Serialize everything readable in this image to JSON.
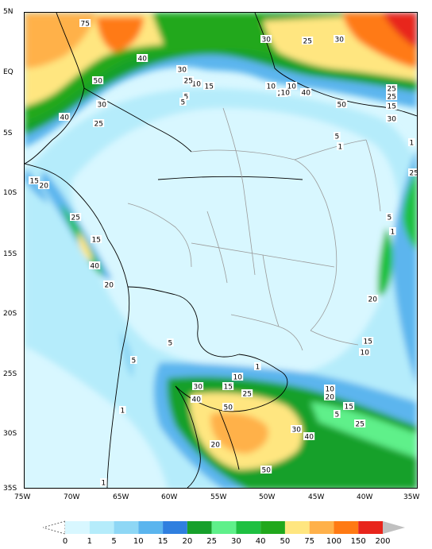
{
  "map": {
    "lat_labels": [
      "5N",
      "EQ",
      "5S",
      "10S",
      "15S",
      "20S",
      "25S",
      "30S",
      "35S"
    ],
    "lon_labels": [
      "75W",
      "70W",
      "65W",
      "60W",
      "55W",
      "50W",
      "45W",
      "40W",
      "35W"
    ],
    "contour_labels": [
      {
        "t": "75"
      },
      {
        "t": "40"
      },
      {
        "t": "50"
      },
      {
        "t": "30"
      },
      {
        "t": "40"
      },
      {
        "t": "25"
      },
      {
        "t": "30"
      },
      {
        "t": "25"
      },
      {
        "t": "30"
      },
      {
        "t": "30"
      },
      {
        "t": "10"
      },
      {
        "t": "15"
      },
      {
        "t": "25"
      },
      {
        "t": "5"
      },
      {
        "t": "10"
      },
      {
        "t": "25"
      },
      {
        "t": "40"
      },
      {
        "t": "50"
      },
      {
        "t": "25"
      },
      {
        "t": "15"
      },
      {
        "t": "10"
      },
      {
        "t": "5"
      },
      {
        "t": "25"
      },
      {
        "t": "10"
      },
      {
        "t": "30"
      },
      {
        "t": "15"
      },
      {
        "t": "20"
      },
      {
        "t": "25"
      },
      {
        "t": "5"
      },
      {
        "t": "15"
      },
      {
        "t": "40"
      },
      {
        "t": "20"
      },
      {
        "t": "20"
      },
      {
        "t": "15"
      },
      {
        "t": "10"
      },
      {
        "t": "5"
      },
      {
        "t": "5"
      },
      {
        "t": "10"
      },
      {
        "t": "20"
      },
      {
        "t": "15"
      },
      {
        "t": "5"
      },
      {
        "t": "30"
      },
      {
        "t": "40"
      },
      {
        "t": "10"
      },
      {
        "t": "15"
      },
      {
        "t": "25"
      },
      {
        "t": "50"
      },
      {
        "t": "20"
      },
      {
        "t": "25"
      },
      {
        "t": "25"
      },
      {
        "t": "30"
      },
      {
        "t": "40"
      },
      {
        "t": "1"
      },
      {
        "t": "1"
      },
      {
        "t": "1"
      },
      {
        "t": "1"
      },
      {
        "t": "1"
      },
      {
        "t": "5"
      },
      {
        "t": "1"
      },
      {
        "t": "50"
      }
    ]
  },
  "legend": {
    "labels": [
      "0",
      "1",
      "5",
      "10",
      "15",
      "20",
      "25",
      "30",
      "40",
      "50",
      "75",
      "100",
      "150",
      "200"
    ],
    "colors": [
      "#d8f7ff",
      "#b5ecfb",
      "#8ed7f5",
      "#5bb5ee",
      "#2f7fdf",
      "#17a02b",
      "#5ff08a",
      "#1ec041",
      "#21a81c",
      "#ffe680",
      "#ffb14a",
      "#ff7a14",
      "#e8251c",
      "#ff6a8a",
      "#c0c0c0"
    ]
  }
}
